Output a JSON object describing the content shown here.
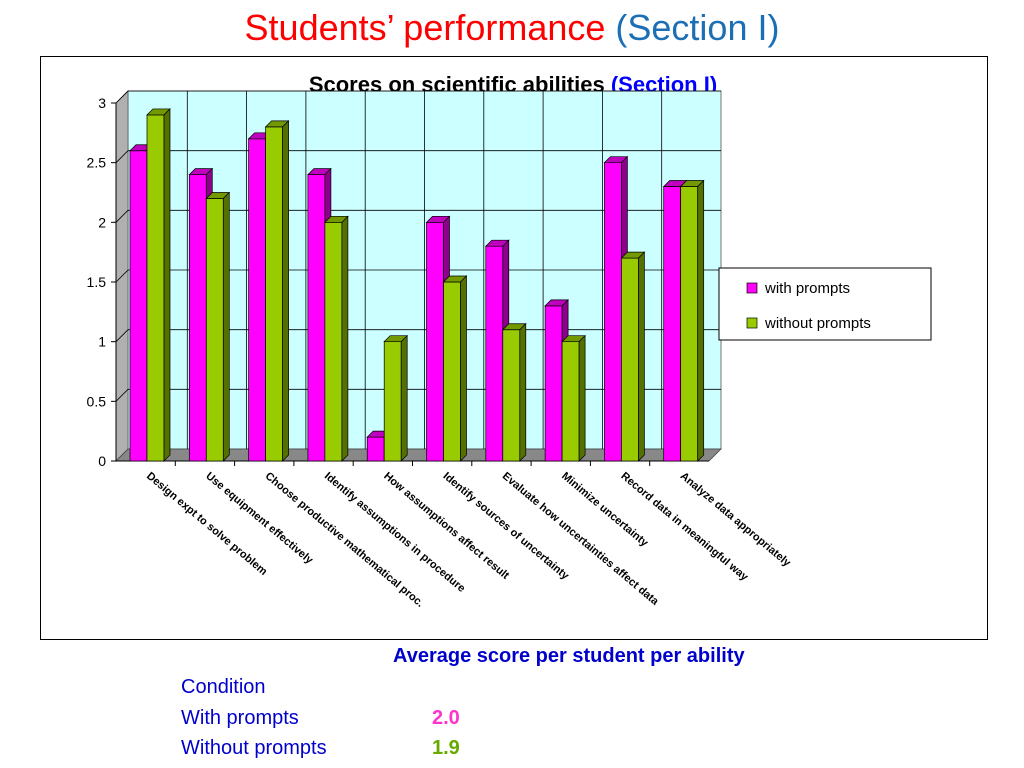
{
  "slide": {
    "title_main": "Students’ performance ",
    "title_section": "(Section I)"
  },
  "chart_data": {
    "type": "bar",
    "title": "Scores on scientific abilities ",
    "title_section": "(Section I)",
    "categories": [
      "Design expt to solve problem",
      "Use equipment effectively",
      "Choose productive mathematical proc.",
      "Identify assumptions in procedure",
      "How assumptions affect result",
      "Identify sources of uncertainty",
      "Evaluate how uncertainties affect data",
      "Minimize uncertainty",
      "Record data in meaningful way",
      "Analyze data appropriately"
    ],
    "series": [
      {
        "name": "with prompts",
        "values": [
          2.6,
          2.4,
          2.7,
          2.4,
          0.2,
          2.0,
          1.8,
          1.3,
          2.5,
          2.3
        ],
        "color": "#ff00ff"
      },
      {
        "name": "without prompts",
        "values": [
          2.9,
          2.2,
          2.8,
          2.0,
          1.0,
          1.5,
          1.1,
          1.0,
          1.7,
          2.3
        ],
        "color": "#99cc00"
      }
    ],
    "ylim": [
      0,
      3
    ],
    "yticks": [
      "0",
      "0.5",
      "1",
      "1.5",
      "2",
      "2.5",
      "3"
    ],
    "grid": true,
    "legend": "right",
    "plot_background": "#ccffff",
    "bar_style": "3d"
  },
  "summary": {
    "heading": "Average score per student per ability",
    "condition_label": "Condition",
    "with_label": "With prompts",
    "with_value": "2.0",
    "without_label": "Without prompts",
    "without_value": "1.9"
  },
  "colors": {
    "title_red": "#ff0000",
    "title_blue": "#1a6fb5",
    "summary_blue": "#0000cc",
    "with_color": "#ff00ff",
    "without_color": "#99cc00"
  }
}
